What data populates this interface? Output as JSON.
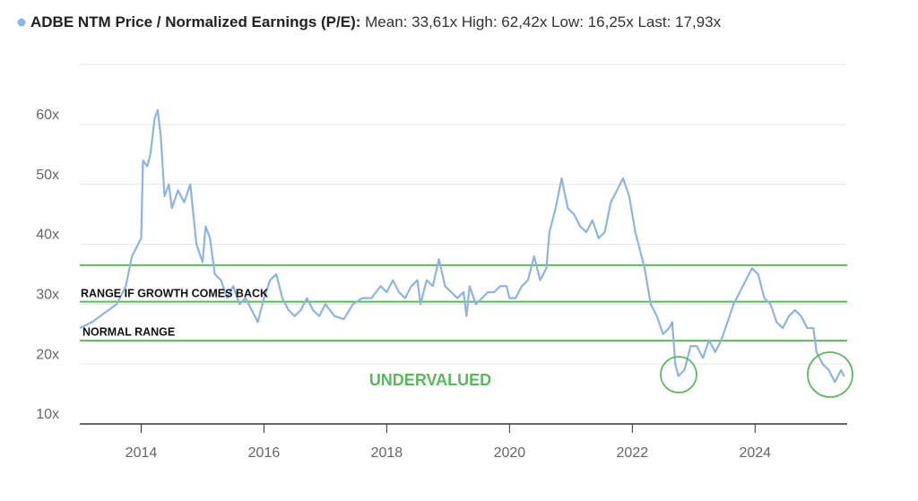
{
  "chart_data": {
    "type": "line",
    "title": "ADBE NTM Price / Normalized Earnings (P/E):",
    "subtitle": "Mean: 33,61x High: 62,42x Low: 16,25x Last: 17,93x",
    "xlim": [
      2013,
      2025.5
    ],
    "xticks": [
      2014,
      2016,
      2018,
      2020,
      2022,
      2024
    ],
    "ylim": [
      10,
      70
    ],
    "yticks": [
      {
        "value": 10,
        "label": "10x"
      },
      {
        "value": 20,
        "label": "20x"
      },
      {
        "value": 30,
        "label": "30x"
      },
      {
        "value": 40,
        "label": "40x"
      },
      {
        "value": 50,
        "label": "50x"
      },
      {
        "value": 60,
        "label": "60x"
      }
    ],
    "grid": true,
    "reference_lines": [
      {
        "value": 36.5,
        "color": "#5cb85c"
      },
      {
        "value": 30.4,
        "color": "#5cb85c"
      },
      {
        "value": 23.9,
        "color": "#5cb85c"
      }
    ],
    "annotations": [
      "RANGE IF GROWTH COMES BACK",
      "NORMAL RANGE",
      "UNDERVALUED"
    ],
    "x": [
      2013.0,
      2013.2,
      2013.4,
      2013.6,
      2013.75,
      2013.85,
      2013.95,
      2014.0,
      2014.03,
      2014.1,
      2014.15,
      2014.22,
      2014.27,
      2014.32,
      2014.38,
      2014.45,
      2014.5,
      2014.6,
      2014.7,
      2014.8,
      2014.85,
      2014.9,
      2015.0,
      2015.05,
      2015.12,
      2015.2,
      2015.3,
      2015.4,
      2015.5,
      2015.6,
      2015.7,
      2015.8,
      2015.9,
      2016.0,
      2016.1,
      2016.2,
      2016.3,
      2016.4,
      2016.5,
      2016.6,
      2016.7,
      2016.8,
      2016.9,
      2017.0,
      2017.15,
      2017.3,
      2017.45,
      2017.6,
      2017.75,
      2017.9,
      2018.0,
      2018.1,
      2018.2,
      2018.3,
      2018.4,
      2018.5,
      2018.55,
      2018.65,
      2018.75,
      2018.85,
      2018.95,
      2019.05,
      2019.15,
      2019.25,
      2019.3,
      2019.35,
      2019.45,
      2019.55,
      2019.65,
      2019.75,
      2019.85,
      2019.95,
      2020.0,
      2020.1,
      2020.2,
      2020.3,
      2020.4,
      2020.5,
      2020.6,
      2020.65,
      2020.75,
      2020.85,
      2020.95,
      2021.05,
      2021.15,
      2021.25,
      2021.35,
      2021.45,
      2021.55,
      2021.65,
      2021.75,
      2021.85,
      2021.95,
      2022.05,
      2022.15,
      2022.2,
      2022.3,
      2022.4,
      2022.5,
      2022.6,
      2022.65,
      2022.7,
      2022.75,
      2022.85,
      2022.95,
      2023.05,
      2023.15,
      2023.25,
      2023.35,
      2023.45,
      2023.55,
      2023.65,
      2023.75,
      2023.85,
      2023.95,
      2024.05,
      2024.15,
      2024.25,
      2024.35,
      2024.45,
      2024.55,
      2024.65,
      2024.75,
      2024.85,
      2024.95,
      2025.0,
      2025.1,
      2025.2,
      2025.3,
      2025.4,
      2025.45
    ],
    "series": [
      {
        "color": "#8db4e2",
        "values": [
          26,
          27,
          28.5,
          30,
          33,
          38,
          40,
          41,
          54,
          53,
          55,
          61,
          62.4,
          58,
          48,
          50,
          46,
          49,
          47,
          50,
          45,
          40,
          37,
          43,
          41,
          35,
          34,
          31,
          33,
          30,
          31,
          29,
          27,
          31,
          34,
          35,
          31,
          29,
          28,
          29,
          31,
          29,
          28,
          30,
          28,
          27.5,
          30,
          31,
          31,
          33,
          32,
          34,
          32,
          31,
          33,
          34,
          30,
          34,
          33,
          37.5,
          33,
          32,
          31,
          32,
          28,
          33,
          30,
          31,
          32,
          32,
          33,
          33,
          31,
          31,
          33,
          34,
          38,
          34,
          36,
          42,
          46,
          51,
          46,
          45,
          43,
          42,
          44,
          41,
          42,
          47,
          49,
          51,
          48,
          42,
          38,
          36,
          30,
          28,
          25,
          26,
          27,
          20,
          18,
          19,
          23,
          23,
          21,
          24,
          22,
          24,
          27,
          30,
          32,
          34,
          36,
          35,
          31,
          30,
          27,
          26,
          28,
          29,
          28,
          26,
          26,
          22,
          20,
          19,
          17,
          19,
          17.93
        ]
      }
    ]
  }
}
